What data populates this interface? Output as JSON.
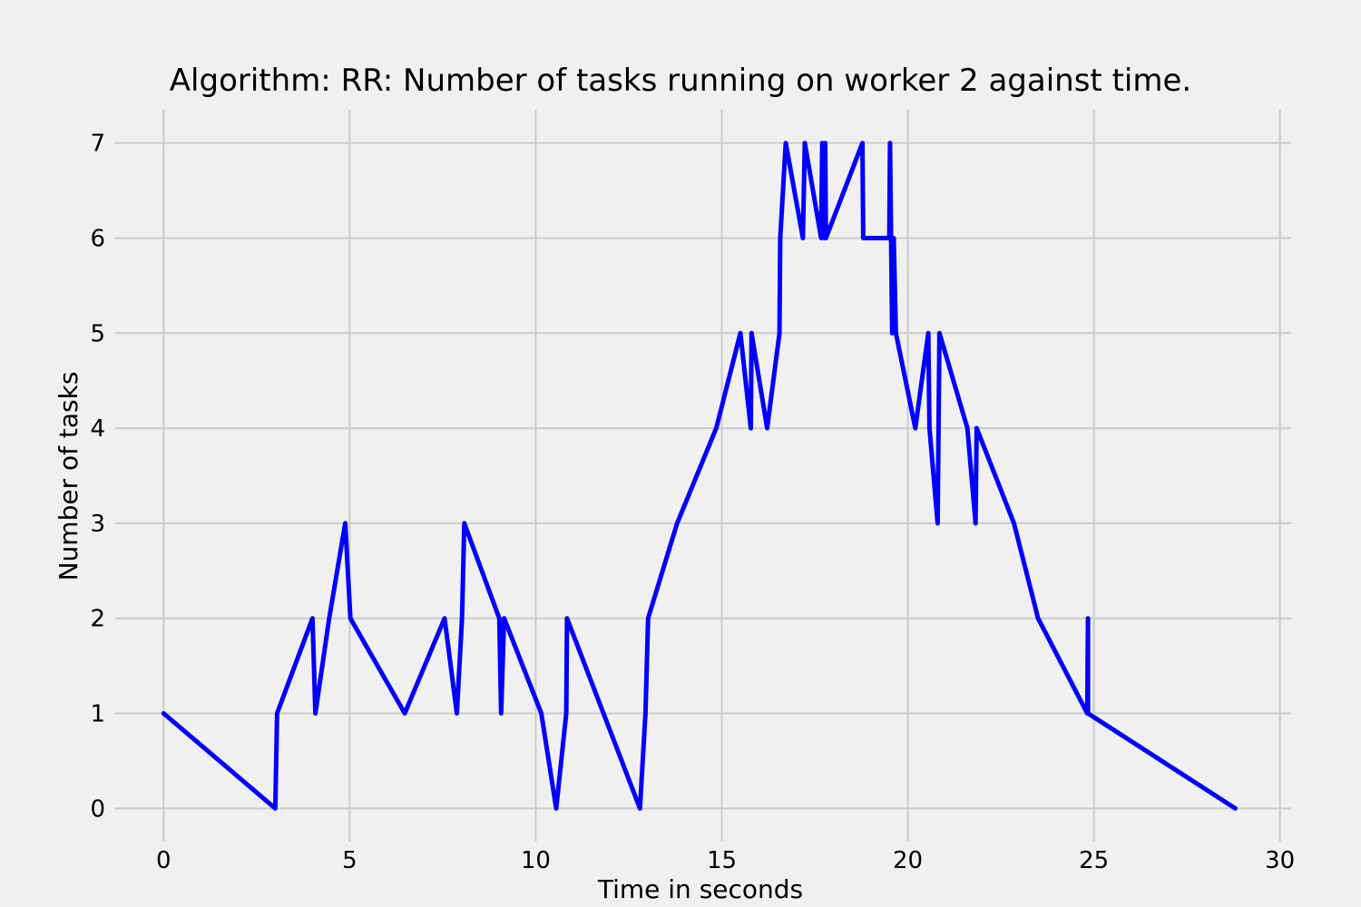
{
  "chart_data": {
    "type": "line",
    "title": "Algorithm: RR: Number of tasks running on worker 2 against time.",
    "xlabel": "Time in seconds",
    "ylabel": "Number of tasks",
    "xlim": [
      -1.3,
      30.3
    ],
    "ylim": [
      -0.35,
      7.35
    ],
    "xticks": [
      0,
      5,
      10,
      15,
      20,
      25,
      30
    ],
    "yticks": [
      0,
      1,
      2,
      3,
      4,
      5,
      6,
      7
    ],
    "grid": true,
    "colors": {
      "background": "#f0f0f0",
      "line": "#0000ff"
    },
    "series": [
      {
        "x": [
          0.0,
          3.0,
          3.05,
          4.0,
          4.08,
          4.45,
          4.88,
          5.02,
          6.48,
          7.55,
          7.88,
          8.02,
          8.08,
          9.02,
          9.07,
          9.15,
          10.15,
          10.55,
          10.82,
          10.84,
          12.8,
          12.95,
          13.02,
          13.8,
          14.85,
          15.5,
          15.78,
          15.8,
          16.22,
          16.55,
          16.57,
          16.72,
          17.18,
          17.23,
          17.67,
          17.7,
          17.75,
          17.78,
          17.8,
          18.78,
          18.8,
          19.5,
          19.52,
          19.58,
          19.62,
          19.68,
          20.2,
          20.55,
          20.58,
          20.8,
          20.85,
          21.6,
          21.82,
          21.85,
          22.85,
          23.5,
          24.82,
          24.84,
          24.84,
          28.8
        ],
        "y": [
          1,
          0,
          1,
          2,
          1,
          2,
          3,
          2,
          1,
          2,
          1,
          2,
          3,
          2,
          1,
          2,
          1,
          0,
          1,
          2,
          0,
          1,
          2,
          3,
          4,
          5,
          4,
          5,
          4,
          5,
          6,
          7,
          6,
          7,
          6,
          7,
          6,
          7,
          6,
          7,
          6,
          6,
          7,
          5,
          6,
          5,
          4,
          5,
          4,
          3,
          5,
          4,
          3,
          4,
          3,
          2,
          1,
          2,
          1,
          0
        ]
      }
    ]
  }
}
